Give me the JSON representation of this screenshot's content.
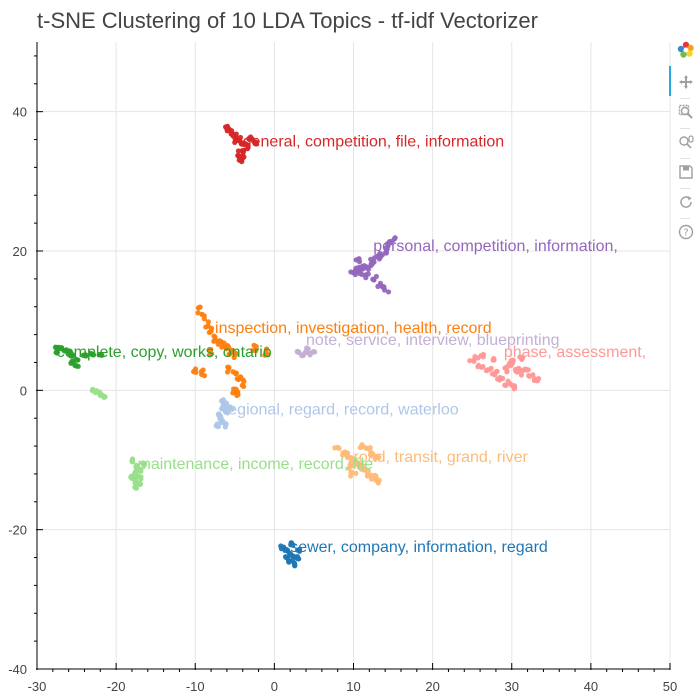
{
  "chart_data": {
    "type": "scatter",
    "title": "t-SNE Clustering of 10 LDA Topics - tf-idf Vectorizer",
    "xlim": [
      -30,
      50
    ],
    "ylim": [
      -40,
      50
    ],
    "x_ticks": [
      -30,
      -20,
      -10,
      0,
      10,
      20,
      30,
      40,
      50
    ],
    "y_ticks": [
      -40,
      -20,
      0,
      20,
      40
    ],
    "grid": true,
    "clusters": [
      {
        "label": "general, competition, file, information",
        "color": "#d62728",
        "label_at": [
          -4,
          35
        ],
        "spread": [
          1.0,
          1.6
        ],
        "points": [
          [
            -6,
            37.5
          ],
          [
            -5.5,
            37
          ],
          [
            -5,
            36.5
          ],
          [
            -4.5,
            36
          ],
          [
            -4,
            35.5
          ],
          [
            -3.5,
            35
          ],
          [
            -4,
            34.5
          ],
          [
            -4.5,
            34
          ],
          [
            -4,
            33.5
          ],
          [
            -4.2,
            33
          ],
          [
            -3,
            36
          ],
          [
            -2.5,
            35.5
          ],
          [
            -5.8,
            37.2
          ],
          [
            -4.8,
            35.8
          ]
        ]
      },
      {
        "label": "personal, competition, information,",
        "color": "#9467bd",
        "label_at": [
          12.5,
          20
        ],
        "spread": [
          1.8,
          1.6
        ],
        "points": [
          [
            15,
            21.5
          ],
          [
            14.5,
            21
          ],
          [
            14,
            20
          ],
          [
            13.5,
            19.5
          ],
          [
            13,
            19
          ],
          [
            12.5,
            18.5
          ],
          [
            12,
            18
          ],
          [
            11.5,
            17.5
          ],
          [
            11,
            17
          ],
          [
            10.5,
            17.5
          ],
          [
            10,
            17
          ],
          [
            12.5,
            16
          ],
          [
            13.5,
            15
          ],
          [
            14,
            14.5
          ],
          [
            10.5,
            18.5
          ],
          [
            11.5,
            16.5
          ]
        ]
      },
      {
        "label": "inspection, investigation, health, record",
        "color": "#ff7f0e",
        "label_at": [
          -7.5,
          8.2
        ],
        "spread": [
          1.0,
          2.0
        ],
        "points": [
          [
            -9.5,
            11.5
          ],
          [
            -9,
            10.5
          ],
          [
            -8.5,
            9.5
          ],
          [
            -8,
            8.5
          ],
          [
            -7.5,
            7.5
          ],
          [
            -7,
            7
          ],
          [
            -6.5,
            6.5
          ],
          [
            -6,
            6
          ],
          [
            -5.5,
            5.5
          ],
          [
            -5,
            5.2
          ],
          [
            -6,
            3
          ],
          [
            -5,
            2.5
          ],
          [
            -4.5,
            2
          ],
          [
            -4,
            1
          ],
          [
            -8,
            5.5
          ],
          [
            -10,
            3
          ],
          [
            -9,
            2.5
          ],
          [
            -5,
            0
          ],
          [
            -4.5,
            -0.5
          ],
          [
            -1,
            5.5
          ],
          [
            -2.5,
            6
          ]
        ]
      },
      {
        "label": "note, service, interview, blueprinting",
        "color": "#c5b0d5",
        "label_at": [
          4,
          6.5
        ],
        "spread": [
          0.6,
          0.5
        ],
        "points": [
          [
            4,
            5.5
          ],
          [
            4.5,
            5.2
          ],
          [
            5,
            5.5
          ],
          [
            3.5,
            5
          ],
          [
            3,
            5.5
          ],
          [
            4.2,
            6
          ]
        ]
      },
      {
        "label": "complete, copy, works, ontario",
        "color": "#2ca02c",
        "label_at": [
          -27.5,
          4.8
        ],
        "spread": [
          1.0,
          0.6
        ],
        "points": [
          [
            -27.5,
            6.2
          ],
          [
            -27,
            6
          ],
          [
            -26.5,
            5.8
          ],
          [
            -26,
            5.5
          ],
          [
            -25.5,
            5
          ],
          [
            -25,
            4.5
          ],
          [
            -25.5,
            4
          ],
          [
            -25,
            3.5
          ],
          [
            -27.5,
            5.5
          ],
          [
            -24,
            5
          ],
          [
            -23,
            5.2
          ],
          [
            -22,
            5
          ]
        ]
      },
      {
        "label": "phase, assessment,",
        "color": "#ff9896",
        "label_at": [
          29,
          4.8
        ],
        "spread": [
          1.8,
          1.4
        ],
        "points": [
          [
            25,
            4.5
          ],
          [
            26,
            3.5
          ],
          [
            27,
            3
          ],
          [
            28,
            2.5
          ],
          [
            28.5,
            1.5
          ],
          [
            29,
            3
          ],
          [
            29.5,
            3.5
          ],
          [
            30,
            4
          ],
          [
            30.5,
            3
          ],
          [
            31,
            2.5
          ],
          [
            32,
            3
          ],
          [
            32.5,
            2
          ],
          [
            33,
            1.5
          ],
          [
            30,
            0.5
          ],
          [
            29.5,
            1
          ],
          [
            27.5,
            4.5
          ],
          [
            26,
            5
          ],
          [
            31,
            4.5
          ]
        ]
      },
      {
        "label": "regional, regard, record, waterloo",
        "color": "#aec7e8",
        "label_at": [
          -6.5,
          -3.5
        ],
        "spread": [
          0.7,
          1.1
        ],
        "points": [
          [
            -6.5,
            -1.5
          ],
          [
            -6,
            -2
          ],
          [
            -6.5,
            -2.5
          ],
          [
            -7,
            -3.5
          ],
          [
            -6.8,
            -4
          ],
          [
            -6.5,
            -4.5
          ],
          [
            -6,
            -3
          ],
          [
            -5.5,
            -2.5
          ],
          [
            -7.2,
            -5
          ],
          [
            -6.2,
            -5
          ]
        ]
      },
      {
        "label": "road, transit, grand, river",
        "color": "#ffbb78",
        "label_at": [
          10,
          -10.3
        ],
        "spread": [
          1.5,
          1.3
        ],
        "points": [
          [
            8,
            -8
          ],
          [
            9,
            -9
          ],
          [
            9.5,
            -9.5
          ],
          [
            10,
            -10
          ],
          [
            10.5,
            -10.5
          ],
          [
            11,
            -11
          ],
          [
            11.5,
            -11.5
          ],
          [
            12,
            -12
          ],
          [
            12.5,
            -12.5
          ],
          [
            13,
            -13
          ],
          [
            11,
            -8
          ],
          [
            12,
            -8.5
          ],
          [
            12.5,
            -9
          ],
          [
            13,
            -9.5
          ],
          [
            10,
            -12
          ],
          [
            9.5,
            -11
          ]
        ]
      },
      {
        "label": "maintenance, income, record, file",
        "color": "#98df8a",
        "label_at": [
          -17.3,
          -11.3
        ],
        "spread": [
          0.6,
          1.1
        ],
        "points": [
          [
            -18,
            -10
          ],
          [
            -17.5,
            -11
          ],
          [
            -17,
            -11.5
          ],
          [
            -17.5,
            -12
          ],
          [
            -17,
            -12.5
          ],
          [
            -17.5,
            -13
          ],
          [
            -17,
            -13.5
          ],
          [
            -17.5,
            -14
          ],
          [
            -16.5,
            -10.5
          ],
          [
            -18,
            -12.5
          ],
          [
            -23,
            0
          ],
          [
            -22,
            -0.5
          ],
          [
            -21.5,
            -1
          ],
          [
            -22.5,
            -0.2
          ]
        ]
      },
      {
        "label": "sewer, company, information, regard",
        "color": "#1f77b4",
        "label_at": [
          2,
          -23.2
        ],
        "spread": [
          0.8,
          0.9
        ],
        "points": [
          [
            1,
            -22.5
          ],
          [
            1.5,
            -23
          ],
          [
            2,
            -23.5
          ],
          [
            2.5,
            -24
          ],
          [
            2,
            -24.5
          ],
          [
            2.5,
            -25
          ],
          [
            3,
            -24
          ],
          [
            3,
            -23
          ],
          [
            1.5,
            -24
          ],
          [
            2.2,
            -22
          ]
        ]
      }
    ]
  },
  "toolbar": {
    "icons": [
      "bokeh-logo-icon",
      "pan-icon",
      "box-zoom-icon",
      "wheel-zoom-icon",
      "save-icon",
      "reset-icon",
      "help-icon"
    ]
  }
}
